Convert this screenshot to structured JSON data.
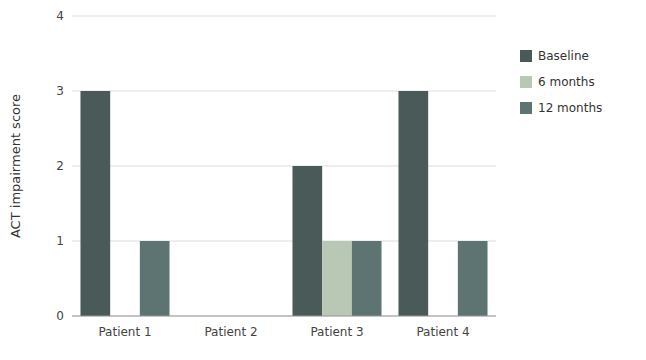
{
  "chart_data": {
    "type": "bar",
    "categories": [
      "Patient 1",
      "Patient 2",
      "Patient 3",
      "Patient 4"
    ],
    "series": [
      {
        "name": "Baseline",
        "color": "#4a5a58",
        "values": [
          3,
          0,
          2,
          3
        ]
      },
      {
        "name": "6 months",
        "color": "#b8c8b4",
        "values": [
          0,
          0,
          1,
          0
        ]
      },
      {
        "name": "12 months",
        "color": "#5e7472",
        "values": [
          1,
          0,
          1,
          1
        ]
      }
    ],
    "ylabel": "ACT impairment score",
    "ylim": [
      0,
      4
    ],
    "yticks": [
      0,
      1,
      2,
      3,
      4
    ],
    "grid": true,
    "legend": "right"
  }
}
